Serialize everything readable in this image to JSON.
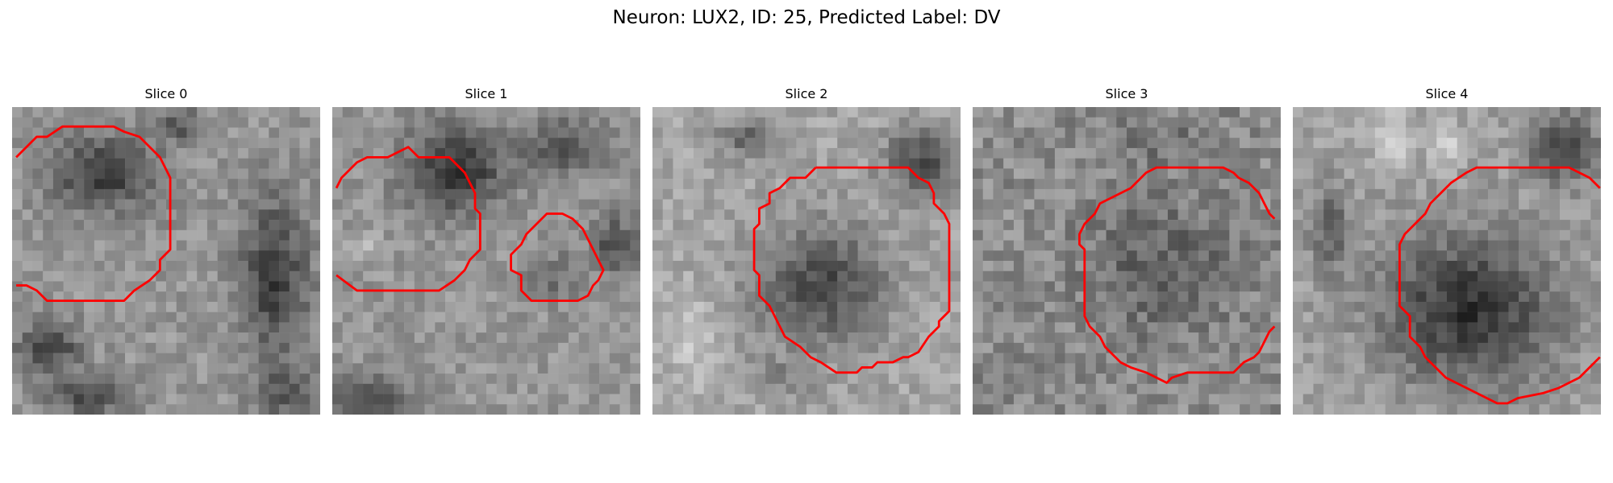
{
  "figure": {
    "title": "Neuron: LUX2, ID: 25, Predicted Label: DV",
    "contour_color": "#ff0000"
  },
  "panels": [
    {
      "title": "Slice 0",
      "blobs": [
        [
          0.3,
          0.22,
          0.22,
          0.15,
          -90
        ],
        [
          0.85,
          0.55,
          0.14,
          0.32,
          -90
        ],
        [
          0.12,
          0.78,
          0.13,
          0.1,
          -80
        ],
        [
          0.25,
          0.94,
          0.17,
          0.09,
          -70
        ],
        [
          0.9,
          0.93,
          0.14,
          0.1,
          -60
        ],
        [
          0.55,
          0.06,
          0.1,
          0.07,
          -60
        ]
      ],
      "bg": 150
    },
    {
      "title": "Slice 1",
      "blobs": [
        [
          0.4,
          0.2,
          0.2,
          0.18,
          -100
        ],
        [
          0.75,
          0.13,
          0.18,
          0.12,
          -60
        ],
        [
          0.92,
          0.45,
          0.1,
          0.12,
          -70
        ],
        [
          0.72,
          0.55,
          0.11,
          0.1,
          -40
        ],
        [
          0.1,
          0.95,
          0.16,
          0.1,
          -80
        ],
        [
          0.1,
          0.45,
          0.08,
          0.06,
          30
        ]
      ],
      "bg": 150
    },
    {
      "title": "Slice 2",
      "blobs": [
        [
          0.55,
          0.58,
          0.27,
          0.24,
          -90
        ],
        [
          0.88,
          0.18,
          0.15,
          0.14,
          -90
        ],
        [
          0.3,
          0.1,
          0.1,
          0.09,
          -60
        ],
        [
          0.12,
          0.75,
          0.1,
          0.2,
          30
        ],
        [
          0.4,
          0.88,
          0.15,
          0.08,
          -30
        ]
      ],
      "bg": 165
    },
    {
      "title": "Slice 3",
      "blobs": [
        [
          0.62,
          0.52,
          0.3,
          0.28,
          -45
        ],
        [
          0.6,
          0.1,
          0.25,
          0.1,
          -25
        ],
        [
          0.15,
          0.85,
          0.12,
          0.1,
          -25
        ]
      ],
      "bg": 140,
      "noise": 60
    },
    {
      "title": "Slice 4",
      "blobs": [
        [
          0.57,
          0.66,
          0.35,
          0.3,
          -110
        ],
        [
          0.88,
          0.13,
          0.14,
          0.14,
          -90
        ],
        [
          0.12,
          0.4,
          0.08,
          0.18,
          -60
        ],
        [
          0.33,
          0.1,
          0.07,
          0.12,
          60
        ],
        [
          0.5,
          0.12,
          0.06,
          0.1,
          50
        ]
      ],
      "bg": 160
    }
  ]
}
